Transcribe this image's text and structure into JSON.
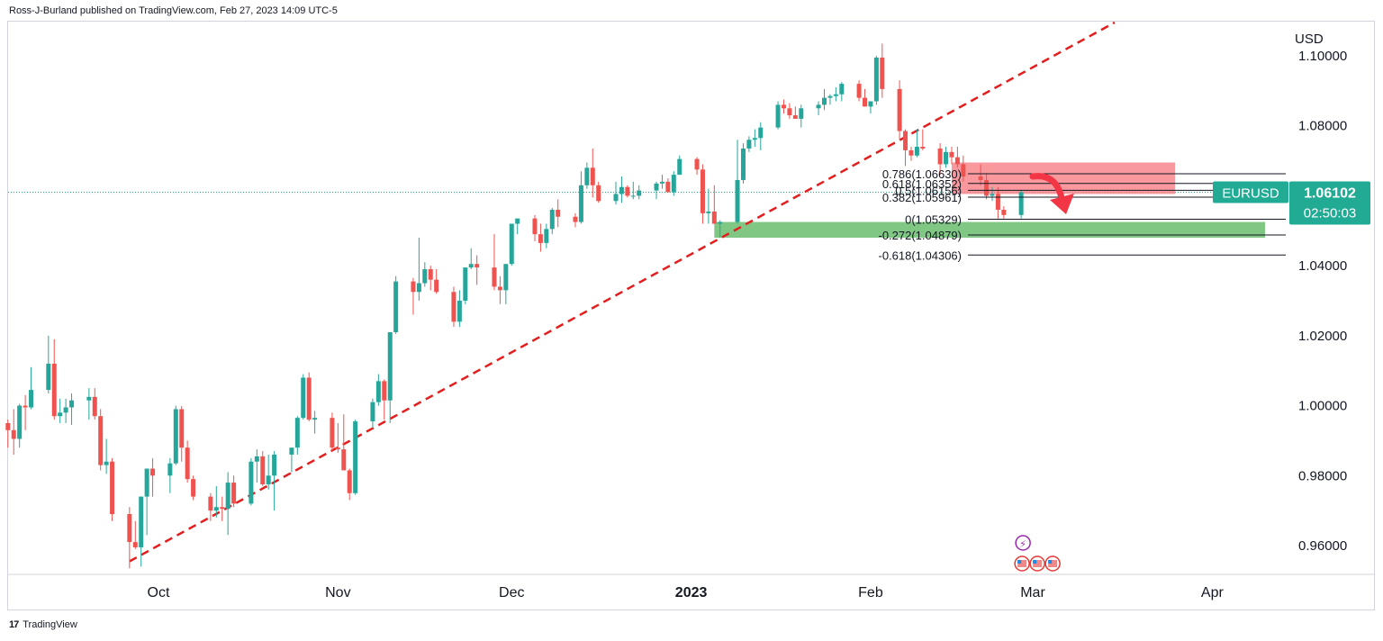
{
  "header": {
    "attribution": "Ross-J-Burland published on TradingView.com, Feb 27, 2023 14:09 UTC-5"
  },
  "footer": {
    "brand": "TradingView",
    "logo_glyph": "17"
  },
  "colors": {
    "up": "#26a69a",
    "down": "#ef5350",
    "trendline": "#e31e1e",
    "supply_zone": "#f7777d",
    "demand_zone": "#4caf50",
    "price_badge": "#22ab94",
    "arrow": "#f23645"
  },
  "chart_data": {
    "type": "candlestick",
    "symbol": "EURUSD",
    "currency": "USD",
    "last_price": "1.06102",
    "countdown": "02:50:03",
    "ylim": [
      0.948,
      1.104
    ],
    "y_ticks": [
      {
        "value": 1.1,
        "label": "1.10000"
      },
      {
        "value": 1.08,
        "label": "1.08000"
      },
      {
        "value": 1.06,
        "label": "1.06000"
      },
      {
        "value": 1.04,
        "label": "1.04000"
      },
      {
        "value": 1.02,
        "label": "1.02000"
      },
      {
        "value": 1.0,
        "label": "1.00000"
      },
      {
        "value": 0.98,
        "label": "0.98000"
      },
      {
        "value": 0.96,
        "label": "0.96000"
      }
    ],
    "x_ticks": [
      {
        "date": "2022-10-01",
        "label": "Oct",
        "bold": false
      },
      {
        "date": "2022-11-01",
        "label": "Nov",
        "bold": false
      },
      {
        "date": "2022-12-01",
        "label": "Dec",
        "bold": false
      },
      {
        "date": "2023-01-01",
        "label": "2023",
        "bold": true
      },
      {
        "date": "2023-02-01",
        "label": "Feb",
        "bold": false
      },
      {
        "date": "2023-03-01",
        "label": "Mar",
        "bold": false
      },
      {
        "date": "2023-04-01",
        "label": "Apr",
        "bold": false
      }
    ],
    "candles": [
      [
        "2022-09-01",
        0.9943,
        1.003,
        0.991,
        1.0
      ],
      [
        "2022-09-02",
        1.0,
        1.0035,
        0.995,
        0.996
      ],
      [
        "2022-09-05",
        0.995,
        0.996,
        0.988,
        0.993
      ],
      [
        "2022-09-06",
        0.993,
        0.999,
        0.986,
        0.9905
      ],
      [
        "2022-09-07",
        0.9905,
        1.0005,
        0.988,
        1.0
      ],
      [
        "2022-09-08",
        1.0,
        1.003,
        0.993,
        0.9995
      ],
      [
        "2022-09-09",
        0.9995,
        1.011,
        0.999,
        1.0045
      ],
      [
        "2022-09-12",
        1.0045,
        1.02,
        1.0035,
        1.012
      ],
      [
        "2022-09-13",
        1.012,
        1.019,
        0.996,
        0.997
      ],
      [
        "2022-09-14",
        0.997,
        1.002,
        0.995,
        0.998
      ],
      [
        "2022-09-15",
        0.998,
        1.002,
        0.995,
        0.9995
      ],
      [
        "2022-09-16",
        0.9995,
        1.0035,
        0.9945,
        1.0015
      ],
      [
        "2022-09-19",
        1.0015,
        1.005,
        0.996,
        1.0025
      ],
      [
        "2022-09-20",
        1.0025,
        1.005,
        0.996,
        0.997
      ],
      [
        "2022-09-21",
        0.997,
        0.999,
        0.9815,
        0.983
      ],
      [
        "2022-09-22",
        0.983,
        0.9905,
        0.9805,
        0.984
      ],
      [
        "2022-09-23",
        0.984,
        0.985,
        0.967,
        0.969
      ],
      [
        "2022-09-26",
        0.969,
        0.971,
        0.9535,
        0.961
      ],
      [
        "2022-09-27",
        0.961,
        0.967,
        0.959,
        0.9595
      ],
      [
        "2022-09-28",
        0.9595,
        0.974,
        0.954,
        0.974
      ],
      [
        "2022-09-29",
        0.974,
        0.982,
        0.963,
        0.982
      ],
      [
        "2022-09-30",
        0.982,
        0.985,
        0.974,
        0.98
      ],
      [
        "2022-10-03",
        0.98,
        0.985,
        0.975,
        0.9835
      ],
      [
        "2022-10-04",
        0.9835,
        1.0,
        0.983,
        0.999
      ],
      [
        "2022-10-05",
        0.999,
        0.9999,
        0.984,
        0.988
      ],
      [
        "2022-10-06",
        0.988,
        0.99,
        0.978,
        0.979
      ],
      [
        "2022-10-07",
        0.979,
        0.98,
        0.973,
        0.974
      ],
      [
        "2022-10-10",
        0.974,
        0.975,
        0.967,
        0.97
      ],
      [
        "2022-10-11",
        0.97,
        0.977,
        0.968,
        0.971
      ],
      [
        "2022-10-12",
        0.971,
        0.974,
        0.967,
        0.9705
      ],
      [
        "2022-10-13",
        0.9705,
        0.981,
        0.963,
        0.978
      ],
      [
        "2022-10-14",
        0.978,
        0.98,
        0.971,
        0.972
      ],
      [
        "2022-10-17",
        0.972,
        0.985,
        0.9715,
        0.984
      ],
      [
        "2022-10-18",
        0.984,
        0.9875,
        0.978,
        0.9855
      ],
      [
        "2022-10-19",
        0.9855,
        0.987,
        0.977,
        0.9775
      ],
      [
        "2022-10-20",
        0.9775,
        0.986,
        0.976,
        0.98
      ],
      [
        "2022-10-21",
        0.98,
        0.987,
        0.97,
        0.986
      ],
      [
        "2022-10-24",
        0.986,
        0.988,
        0.981,
        0.988
      ],
      [
        "2022-10-25",
        0.988,
        0.997,
        0.986,
        0.9965
      ],
      [
        "2022-10-26",
        0.9965,
        1.009,
        0.996,
        1.008
      ],
      [
        "2022-10-27",
        1.008,
        1.0095,
        0.9955,
        0.996
      ],
      [
        "2022-10-28",
        0.996,
        0.9985,
        0.992,
        0.9965
      ],
      [
        "2022-10-31",
        0.9965,
        0.998,
        0.987,
        0.988
      ],
      [
        "2022-11-01",
        0.988,
        0.995,
        0.9865,
        0.9875
      ],
      [
        "2022-11-02",
        0.9875,
        0.9975,
        0.9815,
        0.9815
      ],
      [
        "2022-11-03",
        0.9815,
        0.982,
        0.973,
        0.975
      ],
      [
        "2022-11-04",
        0.975,
        0.996,
        0.9745,
        0.9955
      ],
      [
        "2022-11-07",
        0.9955,
        1.002,
        0.9935,
        1.001
      ],
      [
        "2022-11-08",
        1.001,
        1.009,
        1.0,
        1.007
      ],
      [
        "2022-11-09",
        1.007,
        1.0075,
        0.996,
        1.0015
      ],
      [
        "2022-11-10",
        1.0015,
        1.021,
        0.995,
        1.021
      ],
      [
        "2022-11-11",
        1.021,
        1.037,
        1.0205,
        1.0355
      ],
      [
        "2022-11-14",
        1.0355,
        1.0365,
        1.026,
        1.0325
      ],
      [
        "2022-11-15",
        1.0325,
        1.048,
        1.03,
        1.035
      ],
      [
        "2022-11-16",
        1.035,
        1.041,
        1.034,
        1.039
      ],
      [
        "2022-11-17",
        1.039,
        1.04,
        1.033,
        1.036
      ],
      [
        "2022-11-18",
        1.036,
        1.039,
        1.032,
        1.0325
      ],
      [
        "2022-11-21",
        1.0325,
        1.034,
        1.0225,
        1.024
      ],
      [
        "2022-11-22",
        1.024,
        1.033,
        1.0225,
        1.03
      ],
      [
        "2022-11-23",
        1.03,
        1.0395,
        1.029,
        1.0395
      ],
      [
        "2022-11-24",
        1.0395,
        1.045,
        1.039,
        1.0405
      ],
      [
        "2022-11-25",
        1.0405,
        1.043,
        1.0345,
        1.0395
      ],
      [
        "2022-11-28",
        1.0395,
        1.049,
        1.033,
        1.034
      ],
      [
        "2022-11-29",
        1.034,
        1.037,
        1.029,
        1.033
      ],
      [
        "2022-11-30",
        1.033,
        1.04,
        1.029,
        1.0405
      ],
      [
        "2022-12-01",
        1.0405,
        1.052,
        1.04,
        1.052
      ],
      [
        "2022-12-02",
        1.052,
        1.053,
        1.049,
        1.0535
      ],
      [
        "2022-12-05",
        1.0535,
        1.0545,
        1.047,
        1.049
      ],
      [
        "2022-12-06",
        1.049,
        1.052,
        1.044,
        1.0465
      ],
      [
        "2022-12-07",
        1.0465,
        1.052,
        1.045,
        1.0505
      ],
      [
        "2022-12-08",
        1.0505,
        1.0565,
        1.049,
        1.056
      ],
      [
        "2022-12-09",
        1.056,
        1.059,
        1.051,
        1.054
      ],
      [
        "2022-12-12",
        1.054,
        1.055,
        1.051,
        1.0525
      ],
      [
        "2022-12-13",
        1.0525,
        1.067,
        1.052,
        1.063
      ],
      [
        "2022-12-14",
        1.063,
        1.0695,
        1.062,
        1.068
      ],
      [
        "2022-12-15",
        1.068,
        1.0735,
        1.0595,
        1.063
      ],
      [
        "2022-12-16",
        1.063,
        1.064,
        1.058,
        1.0585
      ],
      [
        "2022-12-19",
        1.0585,
        1.064,
        1.0575,
        1.0605
      ],
      [
        "2022-12-20",
        1.0605,
        1.0655,
        1.058,
        1.0625
      ],
      [
        "2022-12-21",
        1.0625,
        1.063,
        1.0595,
        1.06
      ],
      [
        "2022-12-22",
        1.06,
        1.064,
        1.059,
        1.06
      ],
      [
        "2022-12-23",
        1.06,
        1.063,
        1.059,
        1.0615
      ],
      [
        "2022-12-26",
        1.0615,
        1.064,
        1.059,
        1.0635
      ],
      [
        "2022-12-27",
        1.0635,
        1.066,
        1.062,
        1.064
      ],
      [
        "2022-12-28",
        1.064,
        1.065,
        1.061,
        1.061
      ],
      [
        "2022-12-29",
        1.061,
        1.067,
        1.06,
        1.066
      ],
      [
        "2022-12-30",
        1.066,
        1.0715,
        1.066,
        1.0705
      ],
      [
        "2023-01-02",
        1.0705,
        1.071,
        1.066,
        1.0675
      ],
      [
        "2023-01-03",
        1.0675,
        1.069,
        1.052,
        1.055
      ],
      [
        "2023-01-04",
        1.055,
        1.062,
        1.052,
        1.0555
      ],
      [
        "2023-01-05",
        1.0555,
        1.063,
        1.053,
        1.052
      ],
      [
        "2023-01-06",
        1.052,
        1.053,
        1.048,
        1.0525
      ],
      [
        "2023-01-09",
        1.0525,
        1.076,
        1.052,
        1.0645
      ],
      [
        "2023-01-10",
        1.0645,
        1.075,
        1.0635,
        1.0735
      ],
      [
        "2023-01-11",
        1.0735,
        1.077,
        1.0725,
        1.076
      ],
      [
        "2023-01-12",
        1.076,
        1.079,
        1.074,
        1.0765
      ],
      [
        "2023-01-13",
        1.0765,
        1.081,
        1.073,
        1.0795
      ],
      [
        "2023-01-16",
        1.0795,
        1.087,
        1.079,
        1.086
      ],
      [
        "2023-01-17",
        1.086,
        1.0875,
        1.0835,
        1.085
      ],
      [
        "2023-01-18",
        1.085,
        1.0865,
        1.082,
        1.083
      ],
      [
        "2023-01-19",
        1.083,
        1.0855,
        1.082,
        1.082
      ],
      [
        "2023-01-20",
        1.082,
        1.086,
        1.0795,
        1.085
      ],
      [
        "2023-01-23",
        1.085,
        1.087,
        1.083,
        1.086
      ],
      [
        "2023-01-24",
        1.086,
        1.0905,
        1.0845,
        1.088
      ],
      [
        "2023-01-25",
        1.088,
        1.089,
        1.086,
        1.0885
      ],
      [
        "2023-01-26",
        1.0885,
        1.091,
        1.087,
        1.089
      ],
      [
        "2023-01-27",
        1.089,
        1.0925,
        1.087,
        1.092
      ],
      [
        "2023-01-30",
        1.092,
        1.093,
        1.087,
        1.088
      ],
      [
        "2023-01-31",
        1.088,
        1.0905,
        1.0855,
        1.0855
      ],
      [
        "2023-02-01",
        1.0855,
        1.087,
        1.0835,
        1.087
      ],
      [
        "2023-02-02",
        1.087,
        1.1,
        1.086,
        1.0995
      ],
      [
        "2023-02-03",
        1.0995,
        1.1035,
        1.088,
        1.0905
      ],
      [
        "2023-02-06",
        1.0905,
        1.093,
        1.076,
        1.0785
      ],
      [
        "2023-02-07",
        1.0785,
        1.079,
        1.0685,
        1.073
      ],
      [
        "2023-02-08",
        1.073,
        1.074,
        1.07,
        1.0715
      ],
      [
        "2023-02-09",
        1.0715,
        1.079,
        1.071,
        1.074
      ],
      [
        "2023-02-10",
        1.074,
        1.079,
        1.073,
        1.0735
      ],
      [
        "2023-02-13",
        1.0735,
        1.075,
        1.066,
        1.069
      ],
      [
        "2023-02-14",
        1.069,
        1.074,
        1.068,
        1.0725
      ],
      [
        "2023-02-15",
        1.0725,
        1.074,
        1.069,
        1.071
      ],
      [
        "2023-02-16",
        1.071,
        1.074,
        1.068,
        1.069
      ],
      [
        "2023-02-17",
        1.069,
        1.0715,
        1.064,
        1.0655
      ],
      [
        "2023-02-20",
        1.0655,
        1.069,
        1.063,
        1.0645
      ],
      [
        "2023-02-21",
        1.0645,
        1.0665,
        1.059,
        1.06
      ],
      [
        "2023-02-22",
        1.06,
        1.0625,
        1.0585,
        1.0605
      ],
      [
        "2023-02-23",
        1.0605,
        1.0625,
        1.0535,
        1.056
      ],
      [
        "2023-02-24",
        1.056,
        1.057,
        1.0535,
        1.0545
      ],
      [
        "2023-02-27",
        1.0545,
        1.0615,
        1.0535,
        1.061
      ]
    ],
    "fib_levels": [
      {
        "label": "0.786(1.06630)",
        "value": 1.0663
      },
      {
        "label": "0.618(1.06352)",
        "value": 1.06352
      },
      {
        "label": "0.5(1.06156)",
        "value": 1.06156
      },
      {
        "label": "0.382(1.05961)",
        "value": 1.05961
      },
      {
        "label": "0(1.05329)",
        "value": 1.05329
      },
      {
        "label": "-0.272(1.04879)",
        "value": 1.04879
      },
      {
        "label": "-0.618(1.04306)",
        "value": 1.04306
      }
    ],
    "zones": [
      {
        "name": "supply",
        "from": "2023-02-15",
        "to": "2023-03-22",
        "y_top": 1.0695,
        "y_bottom": 1.0605
      },
      {
        "name": "demand",
        "from": "2023-01-05",
        "to": "2023-03-28",
        "y_top": 1.0525,
        "y_bottom": 1.048
      }
    ],
    "trendline": {
      "p1": [
        "2022-09-26",
        0.9555
      ],
      "p2": [
        "2023-03-18",
        1.114
      ]
    },
    "event_icons": {
      "date": "2023-02-27",
      "lightning": "⚡",
      "flags": 3
    }
  }
}
